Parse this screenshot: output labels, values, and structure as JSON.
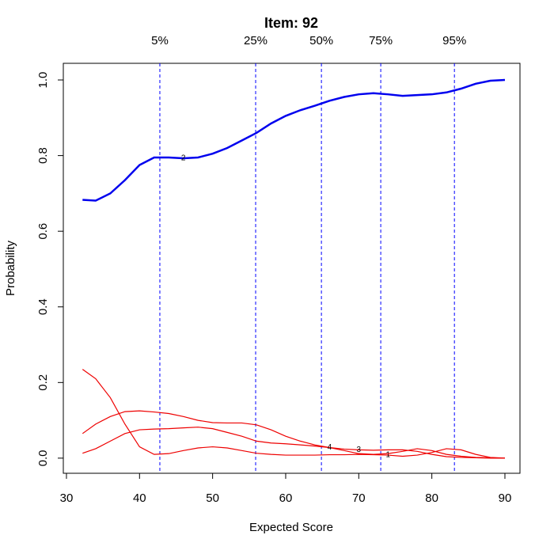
{
  "chart_data": {
    "type": "line",
    "title": "Item:  92",
    "x_label": "Expected Score",
    "y_label": "Probability",
    "xlim": [
      29.57,
      92.06
    ],
    "ylim": [
      -0.04,
      1.044
    ],
    "xticks": [
      30,
      40,
      50,
      60,
      70,
      80,
      90
    ],
    "yticks": [
      {
        "value": 0,
        "label": "0.0"
      },
      {
        "value": 0.2,
        "label": "0.2"
      },
      {
        "value": 0.4,
        "label": "0.4"
      },
      {
        "value": 0.6,
        "label": "0.6"
      },
      {
        "value": 0.8,
        "label": "0.8"
      },
      {
        "value": 1,
        "label": "1.0"
      }
    ],
    "quantiles": [
      {
        "value": 42.78,
        "label": "5%"
      },
      {
        "value": 55.89,
        "label": "25%"
      },
      {
        "value": 64.89,
        "label": "50%"
      },
      {
        "value": 73.01,
        "label": "75%"
      },
      {
        "value": 83.09,
        "label": "95%"
      }
    ],
    "quantile_color": "#0000ff",
    "x": [
      32.2,
      34,
      36,
      38,
      40,
      42,
      44,
      46,
      48,
      50,
      52,
      54,
      56,
      58,
      60,
      62,
      64,
      66,
      68,
      70,
      72,
      74,
      76,
      78,
      80,
      82,
      84,
      86,
      88,
      90
    ],
    "series": [
      {
        "name": "2",
        "color": "#0000ee",
        "values": [
          0.683,
          0.681,
          0.7,
          0.735,
          0.775,
          0.795,
          0.795,
          0.793,
          0.795,
          0.805,
          0.82,
          0.84,
          0.86,
          0.885,
          0.905,
          0.92,
          0.932,
          0.945,
          0.955,
          0.962,
          0.965,
          0.962,
          0.958,
          0.96,
          0.962,
          0.967,
          0.977,
          0.99,
          0.998,
          1.0
        ]
      },
      {
        "name": "1",
        "color": "#ee0000",
        "values": [
          0.235,
          0.21,
          0.16,
          0.09,
          0.03,
          0.01,
          0.012,
          0.02,
          0.027,
          0.03,
          0.027,
          0.02,
          0.013,
          0.01,
          0.008,
          0.008,
          0.008,
          0.009,
          0.009,
          0.01,
          0.009,
          0.008,
          0.005,
          0.008,
          0.015,
          0.025,
          0.022,
          0.01,
          0.002,
          0.0
        ]
      },
      {
        "name": "3",
        "color": "#ee0000",
        "values": [
          0.065,
          0.09,
          0.11,
          0.123,
          0.125,
          0.122,
          0.118,
          0.11,
          0.1,
          0.094,
          0.093,
          0.093,
          0.088,
          0.075,
          0.058,
          0.045,
          0.035,
          0.028,
          0.024,
          0.022,
          0.021,
          0.022,
          0.022,
          0.018,
          0.01,
          0.004,
          0.002,
          0.001,
          0.0,
          0.0
        ]
      },
      {
        "name": "4",
        "color": "#ee0000",
        "values": [
          0.013,
          0.025,
          0.045,
          0.065,
          0.075,
          0.077,
          0.078,
          0.08,
          0.082,
          0.078,
          0.068,
          0.058,
          0.045,
          0.04,
          0.038,
          0.035,
          0.032,
          0.028,
          0.02,
          0.012,
          0.01,
          0.012,
          0.018,
          0.025,
          0.02,
          0.01,
          0.005,
          0.002,
          0.001,
          0.0
        ]
      }
    ]
  }
}
